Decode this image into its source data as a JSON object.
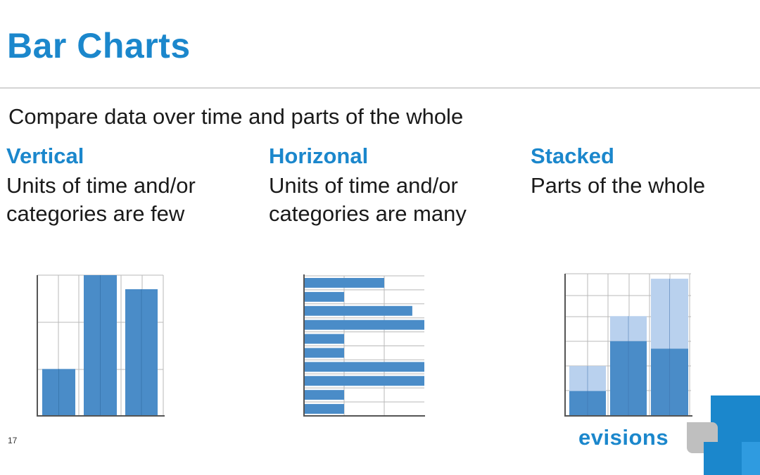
{
  "slide": {
    "title": "Bar Charts",
    "subtitle": "Compare data over time and parts of the whole",
    "page_number": "17"
  },
  "columns": [
    {
      "heading": "Vertical",
      "line1": "Units of time and/or",
      "line2": "categories are few"
    },
    {
      "heading": "Horizonal",
      "line1": "Units of time and/or",
      "line2": "categories are many"
    },
    {
      "heading": "Stacked",
      "line1": "Parts of the whole",
      "line2": ""
    }
  ],
  "logo": {
    "text": "evisions"
  },
  "colors": {
    "accent": "#1b87cc",
    "bar": "#4a8cc8",
    "bar_light": "#b9d1ee",
    "grid": "#b8b8b8"
  },
  "chart_data": [
    {
      "type": "bar",
      "orientation": "vertical",
      "values": [
        1,
        3,
        2.7
      ],
      "ylim": [
        0,
        3
      ]
    },
    {
      "type": "bar",
      "orientation": "horizontal",
      "values": [
        2,
        1,
        2.7,
        3,
        1,
        1,
        3,
        3,
        1,
        1
      ],
      "xlim": [
        0,
        3
      ]
    },
    {
      "type": "bar",
      "orientation": "stacked",
      "series": [
        {
          "values": [
            1,
            3,
            2.7
          ]
        },
        {
          "values": [
            1,
            1,
            2.8
          ]
        }
      ],
      "ylim": [
        0,
        5.7
      ]
    }
  ]
}
